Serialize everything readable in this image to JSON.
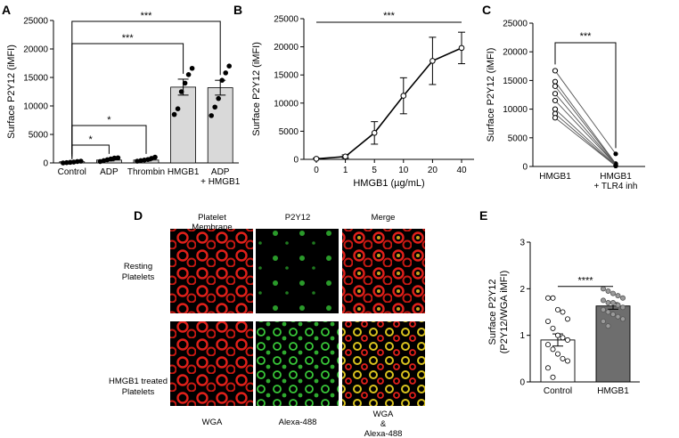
{
  "colors": {
    "bar_gray": "#d9d9d9",
    "bar_dark": "#6e6e6e",
    "axis": "#000000",
    "micro_bg": "#000000",
    "membrane_red": "#e0201a",
    "p2y12_green": "#38c838",
    "merge_yellow": "#d9c21e"
  },
  "chart_data": [
    {
      "panel": "A",
      "type": "bar",
      "ylabel": "Surface P2Y12 (iMFI)",
      "ylim": [
        0,
        25000
      ],
      "yticks": [
        0,
        5000,
        10000,
        15000,
        20000,
        25000
      ],
      "categories": [
        "Control",
        "ADP",
        "Thrombin",
        "HMGB1",
        "ADP\n+ HMGB1"
      ],
      "values": [
        200,
        500,
        500,
        13300,
        13200
      ],
      "sem": [
        100,
        150,
        150,
        1400,
        1300
      ],
      "points": [
        [
          0,
          50,
          100,
          150,
          250,
          300
        ],
        [
          250,
          400,
          550,
          700,
          850,
          900
        ],
        [
          300,
          400,
          500,
          600,
          800,
          1000
        ],
        [
          8500,
          9500,
          12500,
          14000,
          15500,
          16600
        ],
        [
          8300,
          9800,
          11300,
          14500,
          15800,
          17000
        ]
      ],
      "significance": [
        {
          "from": 0,
          "to": 1,
          "label": "*"
        },
        {
          "from": 0,
          "to": 2,
          "label": "*"
        },
        {
          "from": 0,
          "to": 3,
          "label": "***"
        },
        {
          "from": 0,
          "to": 4,
          "label": "***"
        }
      ]
    },
    {
      "panel": "B",
      "type": "line",
      "xlabel": "HMGB1 (µg/mL)",
      "ylabel": "Surface P2Y12 (iMFI)",
      "x": [
        0,
        1,
        5,
        10,
        20,
        40
      ],
      "y": [
        100,
        500,
        4700,
        11300,
        17500,
        19800
      ],
      "err": [
        100,
        300,
        2000,
        3200,
        4200,
        2800
      ],
      "ylim": [
        0,
        25000
      ],
      "yticks": [
        0,
        5000,
        10000,
        15000,
        20000,
        25000
      ],
      "significance": {
        "label": "***"
      }
    },
    {
      "panel": "C",
      "type": "line",
      "ylabel": "Surface P2Y12 (iMFI)",
      "categories": [
        "HMGB1",
        "HMGB1\n+ TLR4 inh"
      ],
      "pairs": [
        [
          16700,
          2200
        ],
        [
          14800,
          500
        ],
        [
          14000,
          400
        ],
        [
          12700,
          300
        ],
        [
          11500,
          300
        ],
        [
          10000,
          200
        ],
        [
          9200,
          100
        ],
        [
          8500,
          100
        ]
      ],
      "ylim": [
        0,
        25000
      ],
      "yticks": [
        0,
        5000,
        10000,
        15000,
        20000,
        25000
      ],
      "significance": {
        "label": "***"
      }
    },
    {
      "panel": "E",
      "type": "bar",
      "ylabel": "Surface P2Y12\n(P2Y12/WGA iMFI)",
      "categories": [
        "Control",
        "HMGB1"
      ],
      "values": [
        0.9,
        1.63
      ],
      "sem": [
        0.13,
        0.07
      ],
      "points": [
        [
          1.8,
          1.8,
          1.55,
          1.5,
          1.35,
          1.3,
          1.15,
          1.0,
          0.95,
          0.9,
          0.8,
          0.7,
          0.6,
          0.5,
          0.45,
          0.3,
          0.1
        ],
        [
          2.0,
          1.95,
          1.9,
          1.85,
          1.8,
          1.75,
          1.7,
          1.7,
          1.65,
          1.6,
          1.55,
          1.5,
          1.45,
          1.4,
          1.35,
          1.3,
          1.2
        ]
      ],
      "ylim": [
        0,
        3
      ],
      "yticks": [
        0,
        1,
        2,
        3
      ],
      "significance": {
        "label": "****"
      }
    }
  ],
  "panel_letters": [
    "A",
    "B",
    "C",
    "D",
    "E"
  ],
  "panel_d": {
    "columns": [
      "Platelet\nMembrane",
      "P2Y12",
      "Merge"
    ],
    "rows": [
      "Resting\nPlatelets",
      "HMGB1 treated\nPlatelets"
    ],
    "channels": [
      "WGA",
      "Alexa-488",
      "WGA\n&\nAlexa-488"
    ]
  }
}
